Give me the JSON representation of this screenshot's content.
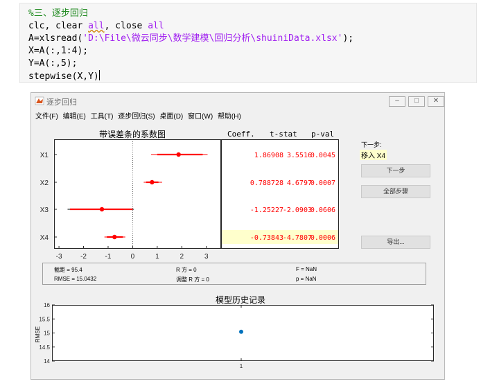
{
  "code": {
    "comment": "%三、逐步回归",
    "line2_a": "clc, clear ",
    "line2_all1": "all",
    "line2_b": ", close ",
    "line2_all2": "all",
    "line3_a": "A=xlsread(",
    "line3_str": "'D:\\File\\微云同步\\数学建模\\回归分析\\shuiniData.xlsx'",
    "line3_b": ");",
    "line4": "X=A(:,1:4);",
    "line5": "Y=A(:,5);",
    "line6": "stepwise(X,Y)"
  },
  "window": {
    "title": "逐步回归",
    "minimize": "–",
    "maximize": "□",
    "close": "✕"
  },
  "menu": [
    "文件(F)",
    "编辑(E)",
    "工具(T)",
    "逐步回归(S)",
    "桌面(D)",
    "窗口(W)",
    "帮助(H)"
  ],
  "coef_plot": {
    "title": "带误差条的系数图",
    "xticks": [
      "-3",
      "-2",
      "-1",
      "0",
      "1",
      "2",
      "3"
    ],
    "xtick_values": [
      -3,
      -2,
      -1,
      0,
      1,
      2,
      3
    ],
    "xlim": [
      -3.2,
      3.6
    ],
    "rows": [
      {
        "label": "X1",
        "coef": 1.86908,
        "ci_thick": [
          1.0,
          2.85
        ],
        "ci_thin": [
          0.75,
          3.05
        ]
      },
      {
        "label": "X2",
        "coef": 0.788728,
        "ci_thick": [
          0.55,
          1.05
        ],
        "ci_thin": [
          0.45,
          1.2
        ]
      },
      {
        "label": "X3",
        "coef": -1.25227,
        "ci_thick": [
          -2.55,
          0.0
        ],
        "ci_thin": [
          -2.65,
          0.05
        ]
      },
      {
        "label": "X4",
        "coef": -0.73843,
        "ci_thick": [
          -1.05,
          -0.4
        ],
        "ci_thin": [
          -1.15,
          -0.3
        ]
      }
    ]
  },
  "table": {
    "headers": [
      "Coeff.",
      "t-stat",
      "p-val"
    ],
    "rows": [
      [
        "1.86908",
        "3.5516",
        "0.0045"
      ],
      [
        "0.788728",
        "4.6797",
        "0.0007"
      ],
      [
        "-1.25227",
        "-2.0903",
        "0.0606"
      ],
      [
        "-0.73843",
        "-4.7807",
        "0.0006"
      ]
    ],
    "highlight_row": 3
  },
  "side": {
    "next_step_label": "下一步:",
    "next_step_value": "移入 X4",
    "next_button": "下一步",
    "all_steps_button": "全部步骤",
    "export_button": "导出..."
  },
  "stats": {
    "intercept": "截距 = 95.4",
    "rmse": "RMSE = 15.0432",
    "r2": "R 方 = 0",
    "adj_r2": "调整 R 方 = 0",
    "f": "F = NaN",
    "p": "p = NaN"
  },
  "colors": {
    "code_string": "#a020f0",
    "code_comment": "#228b22",
    "coef_marker": "#ff0000",
    "table_text": "#ff0000",
    "highlight_bg": "#ffffcc",
    "history_marker": "#0072bd"
  },
  "chart_data": {
    "type": "scatter",
    "title": "模型历史记录",
    "ylabel": "RMSE",
    "xlabel": "",
    "x": [
      1
    ],
    "y": [
      15.0432
    ],
    "ylim": [
      14,
      16
    ],
    "yticks": [
      "16",
      "15.5",
      "15",
      "14.5",
      "14"
    ],
    "ytick_values": [
      16,
      15.5,
      15,
      14.5,
      14
    ],
    "xticks": [
      "1"
    ]
  }
}
